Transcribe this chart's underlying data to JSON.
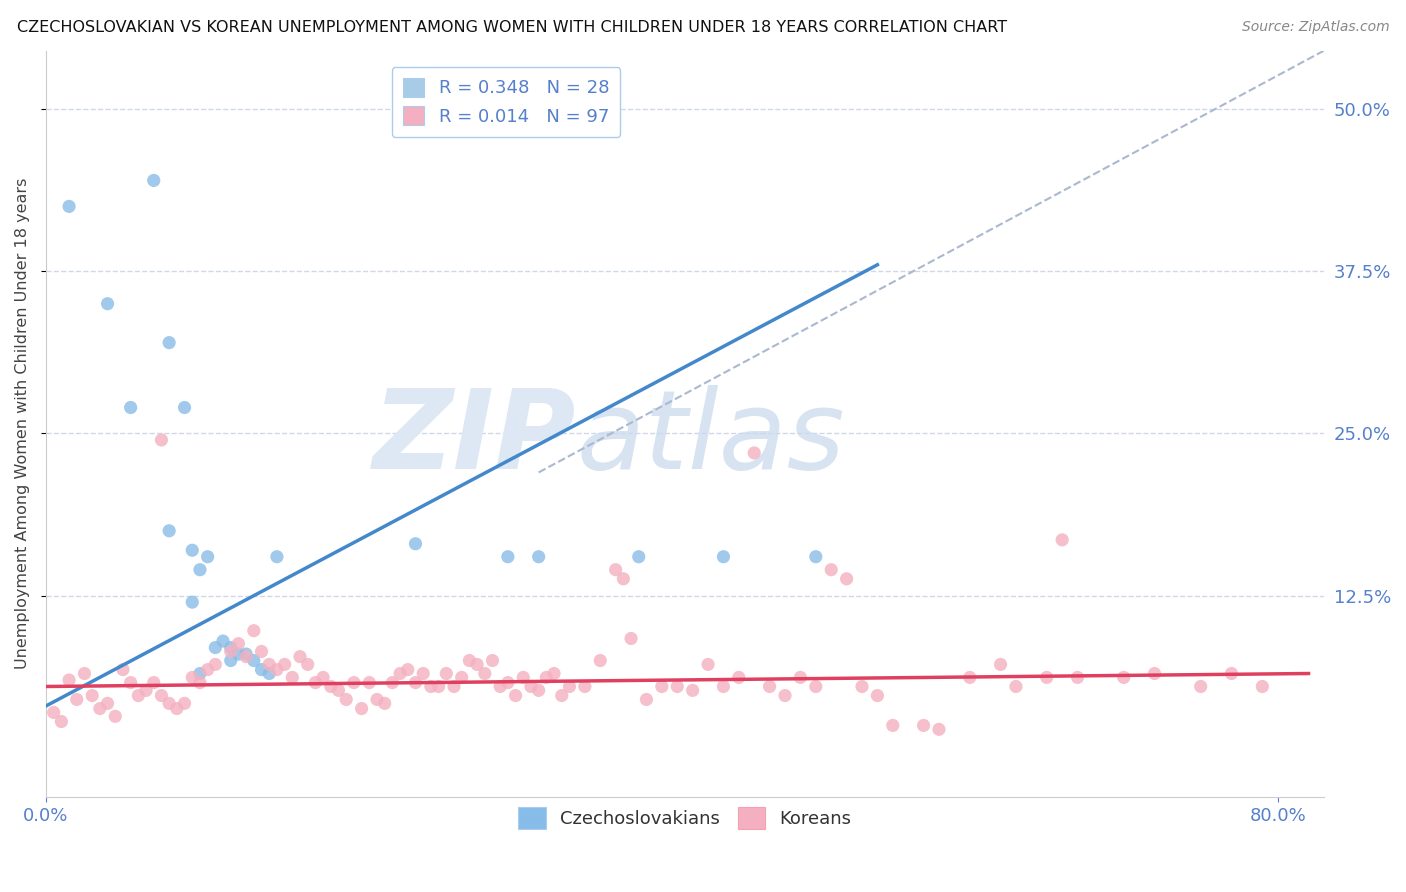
{
  "title": "CZECHOSLOVAKIAN VS KOREAN UNEMPLOYMENT AMONG WOMEN WITH CHILDREN UNDER 18 YEARS CORRELATION CHART",
  "source": "Source: ZipAtlas.com",
  "ylabel": "Unemployment Among Women with Children Under 18 years",
  "xlim": [
    0.0,
    0.83
  ],
  "ylim": [
    -0.03,
    0.545
  ],
  "yticks": [
    0.125,
    0.25,
    0.375,
    0.5
  ],
  "yticklabels": [
    "12.5%",
    "25.0%",
    "37.5%",
    "50.0%"
  ],
  "xticks": [
    0.0,
    0.8
  ],
  "xticklabels": [
    "0.0%",
    "80.0%"
  ],
  "legend_entries": [
    {
      "label": "R = 0.348   N = 28",
      "color": "#a8cce8"
    },
    {
      "label": "R = 0.014   N = 97",
      "color": "#f4b0c0"
    }
  ],
  "czech_color": "#88bce8",
  "korean_color": "#f4b0c0",
  "trend_czech_color": "#4488cc",
  "trend_korean_color": "#e04060",
  "trend_diag_color": "#aab8d0",
  "background_color": "#ffffff",
  "grid_color": "#d0d8e8",
  "tick_color": "#5580cc",
  "watermark_zip": "ZIP",
  "watermark_atlas": "atlas",
  "watermark_color": "#dde8f4",
  "czech_trend_x": [
    0.0,
    0.54
  ],
  "czech_trend_y": [
    0.04,
    0.38
  ],
  "korean_trend_x": [
    0.0,
    0.82
  ],
  "korean_trend_y": [
    0.055,
    0.065
  ],
  "diag_trend_x": [
    0.32,
    0.83
  ],
  "diag_trend_y": [
    0.22,
    0.545
  ],
  "czech_points": [
    [
      0.015,
      0.425
    ],
    [
      0.04,
      0.35
    ],
    [
      0.055,
      0.27
    ],
    [
      0.07,
      0.445
    ],
    [
      0.08,
      0.32
    ],
    [
      0.09,
      0.27
    ],
    [
      0.08,
      0.175
    ],
    [
      0.095,
      0.16
    ],
    [
      0.1,
      0.145
    ],
    [
      0.105,
      0.155
    ],
    [
      0.095,
      0.12
    ],
    [
      0.11,
      0.085
    ],
    [
      0.115,
      0.09
    ],
    [
      0.12,
      0.085
    ],
    [
      0.12,
      0.075
    ],
    [
      0.125,
      0.08
    ],
    [
      0.13,
      0.08
    ],
    [
      0.135,
      0.075
    ],
    [
      0.1,
      0.065
    ],
    [
      0.14,
      0.068
    ],
    [
      0.145,
      0.065
    ],
    [
      0.15,
      0.155
    ],
    [
      0.24,
      0.165
    ],
    [
      0.3,
      0.155
    ],
    [
      0.32,
      0.155
    ],
    [
      0.385,
      0.155
    ],
    [
      0.44,
      0.155
    ],
    [
      0.5,
      0.155
    ]
  ],
  "korean_points": [
    [
      0.005,
      0.035
    ],
    [
      0.01,
      0.028
    ],
    [
      0.015,
      0.06
    ],
    [
      0.02,
      0.045
    ],
    [
      0.025,
      0.065
    ],
    [
      0.03,
      0.048
    ],
    [
      0.035,
      0.038
    ],
    [
      0.04,
      0.042
    ],
    [
      0.045,
      0.032
    ],
    [
      0.05,
      0.068
    ],
    [
      0.055,
      0.058
    ],
    [
      0.06,
      0.048
    ],
    [
      0.065,
      0.052
    ],
    [
      0.07,
      0.058
    ],
    [
      0.075,
      0.048
    ],
    [
      0.08,
      0.042
    ],
    [
      0.085,
      0.038
    ],
    [
      0.09,
      0.042
    ],
    [
      0.095,
      0.062
    ],
    [
      0.1,
      0.058
    ],
    [
      0.105,
      0.068
    ],
    [
      0.11,
      0.072
    ],
    [
      0.12,
      0.082
    ],
    [
      0.125,
      0.088
    ],
    [
      0.13,
      0.078
    ],
    [
      0.135,
      0.098
    ],
    [
      0.14,
      0.082
    ],
    [
      0.145,
      0.072
    ],
    [
      0.15,
      0.068
    ],
    [
      0.155,
      0.072
    ],
    [
      0.16,
      0.062
    ],
    [
      0.165,
      0.078
    ],
    [
      0.17,
      0.072
    ],
    [
      0.175,
      0.058
    ],
    [
      0.18,
      0.062
    ],
    [
      0.185,
      0.055
    ],
    [
      0.19,
      0.052
    ],
    [
      0.195,
      0.045
    ],
    [
      0.2,
      0.058
    ],
    [
      0.205,
      0.038
    ],
    [
      0.21,
      0.058
    ],
    [
      0.215,
      0.045
    ],
    [
      0.22,
      0.042
    ],
    [
      0.225,
      0.058
    ],
    [
      0.23,
      0.065
    ],
    [
      0.235,
      0.068
    ],
    [
      0.24,
      0.058
    ],
    [
      0.245,
      0.065
    ],
    [
      0.25,
      0.055
    ],
    [
      0.255,
      0.055
    ],
    [
      0.26,
      0.065
    ],
    [
      0.265,
      0.055
    ],
    [
      0.27,
      0.062
    ],
    [
      0.275,
      0.075
    ],
    [
      0.28,
      0.072
    ],
    [
      0.285,
      0.065
    ],
    [
      0.29,
      0.075
    ],
    [
      0.295,
      0.055
    ],
    [
      0.3,
      0.058
    ],
    [
      0.305,
      0.048
    ],
    [
      0.31,
      0.062
    ],
    [
      0.315,
      0.055
    ],
    [
      0.32,
      0.052
    ],
    [
      0.325,
      0.062
    ],
    [
      0.33,
      0.065
    ],
    [
      0.335,
      0.048
    ],
    [
      0.34,
      0.055
    ],
    [
      0.35,
      0.055
    ],
    [
      0.36,
      0.075
    ],
    [
      0.37,
      0.145
    ],
    [
      0.375,
      0.138
    ],
    [
      0.38,
      0.092
    ],
    [
      0.39,
      0.045
    ],
    [
      0.4,
      0.055
    ],
    [
      0.41,
      0.055
    ],
    [
      0.42,
      0.052
    ],
    [
      0.43,
      0.072
    ],
    [
      0.44,
      0.055
    ],
    [
      0.45,
      0.062
    ],
    [
      0.46,
      0.235
    ],
    [
      0.47,
      0.055
    ],
    [
      0.48,
      0.048
    ],
    [
      0.49,
      0.062
    ],
    [
      0.5,
      0.055
    ],
    [
      0.51,
      0.145
    ],
    [
      0.52,
      0.138
    ],
    [
      0.53,
      0.055
    ],
    [
      0.54,
      0.048
    ],
    [
      0.55,
      0.025
    ],
    [
      0.57,
      0.025
    ],
    [
      0.58,
      0.022
    ],
    [
      0.6,
      0.062
    ],
    [
      0.62,
      0.072
    ],
    [
      0.63,
      0.055
    ],
    [
      0.65,
      0.062
    ],
    [
      0.66,
      0.168
    ],
    [
      0.67,
      0.062
    ],
    [
      0.7,
      0.062
    ],
    [
      0.72,
      0.065
    ],
    [
      0.75,
      0.055
    ],
    [
      0.77,
      0.065
    ],
    [
      0.79,
      0.055
    ],
    [
      0.075,
      0.245
    ]
  ]
}
